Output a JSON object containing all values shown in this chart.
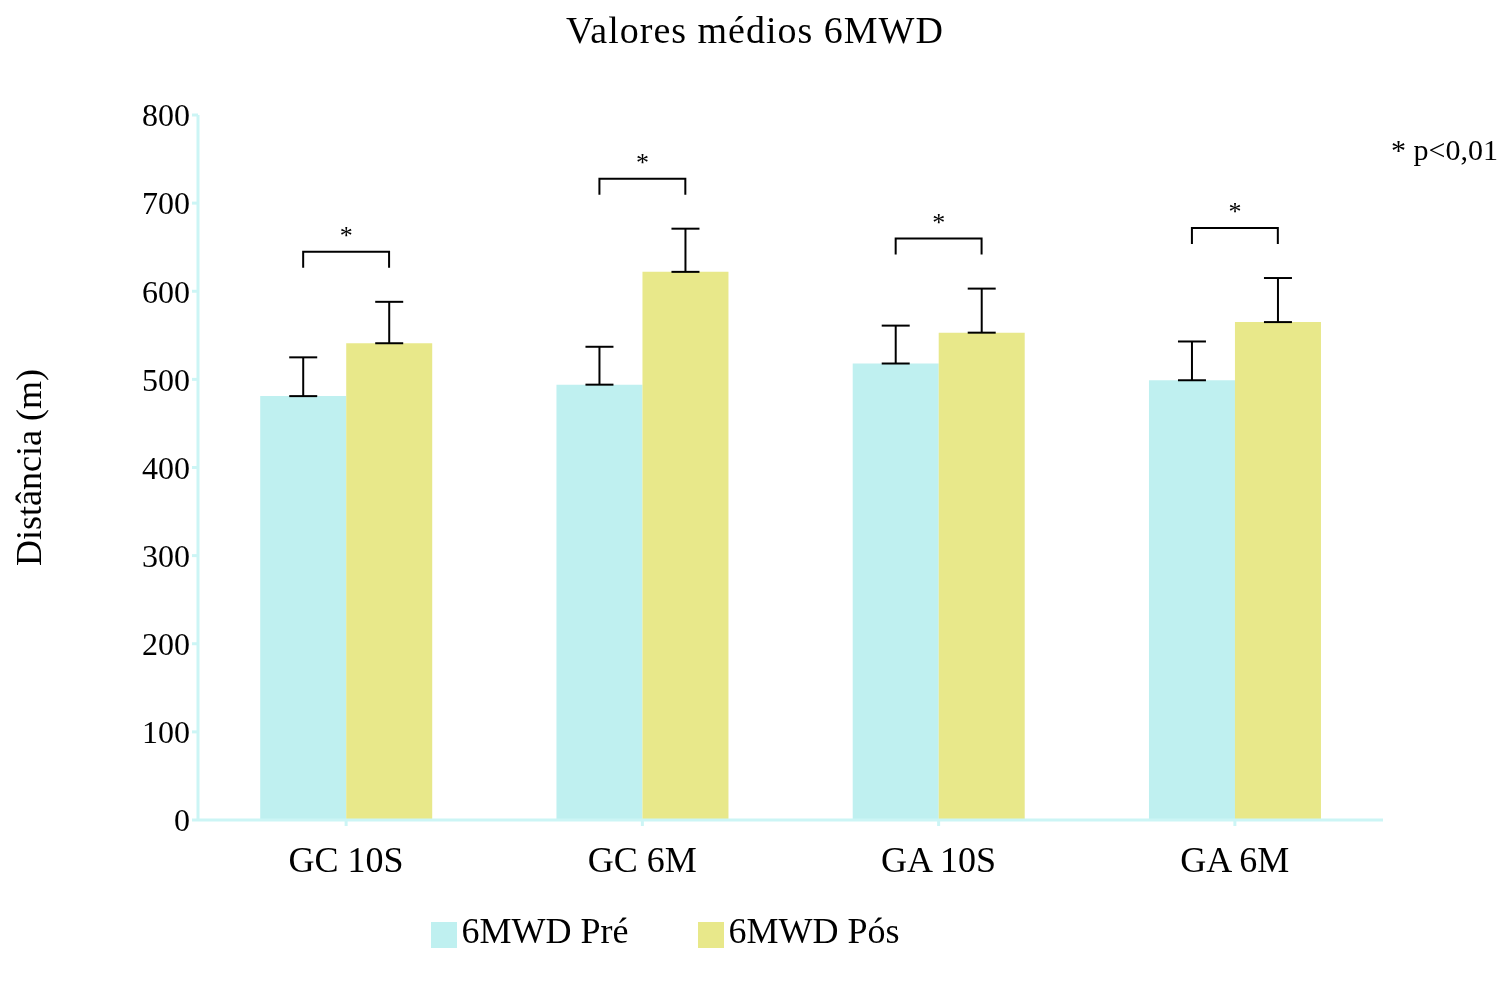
{
  "chart_data": {
    "type": "bar",
    "title": "Valores médios 6MWD",
    "ylabel": "Distância (m)",
    "categories": [
      "GC 10S",
      "GC 6M",
      "GA 10S",
      "GA 6M"
    ],
    "series": [
      {
        "name": "6MWD Pré",
        "color": "#bff0f0",
        "values": [
          481,
          494,
          518,
          499
        ],
        "errors": [
          [
            481,
            525
          ],
          [
            494,
            537
          ],
          [
            518,
            561
          ],
          [
            499,
            543
          ]
        ]
      },
      {
        "name": "6MWD Pós",
        "color": "#e8e88a",
        "values": [
          541,
          622,
          553,
          565
        ],
        "errors": [
          [
            541,
            588
          ],
          [
            622,
            671
          ],
          [
            553,
            603
          ],
          [
            565,
            615
          ]
        ]
      }
    ],
    "ylim": [
      0,
      800
    ],
    "yticks": [
      0,
      100,
      200,
      300,
      400,
      500,
      600,
      700,
      800
    ],
    "grid": false,
    "legend": "bottom",
    "annotations": [
      "*",
      "*",
      "*",
      "*",
      "* p<0,01"
    ]
  }
}
